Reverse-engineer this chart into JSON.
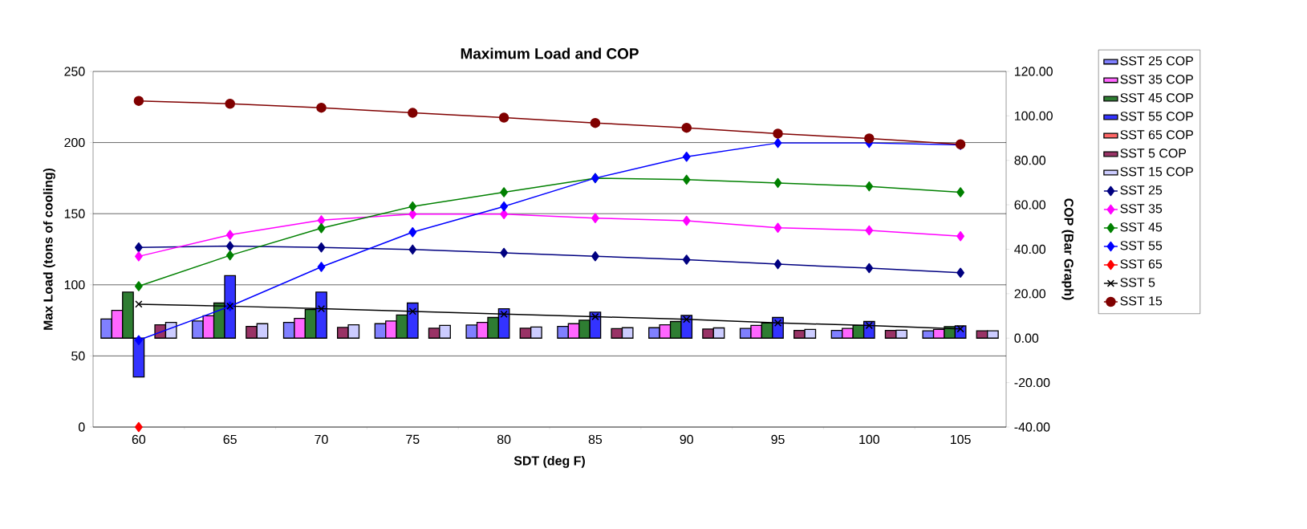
{
  "chart_data": {
    "type": "line",
    "title": "Maximum Load and COP",
    "xlabel": "SDT (deg F)",
    "ylabel": "Max Load (tons of cooling)",
    "y2label": "COP (Bar Graph)",
    "categories": [
      "60",
      "65",
      "70",
      "75",
      "80",
      "85",
      "90",
      "95",
      "100",
      "105"
    ],
    "ylim": [
      0,
      250
    ],
    "yticks": [
      0,
      50,
      100,
      150,
      200,
      250
    ],
    "y2lim": [
      -40,
      120
    ],
    "y2ticks": [
      {
        "value": -40,
        "label": "-40.00"
      },
      {
        "value": -20,
        "label": "-20.00"
      },
      {
        "value": 0,
        "label": "0.00"
      },
      {
        "value": 20,
        "label": "20.00"
      },
      {
        "value": 40,
        "label": "40.00"
      },
      {
        "value": 60,
        "label": "60.00"
      },
      {
        "value": 80,
        "label": "80.00"
      },
      {
        "value": 100,
        "label": "100.00"
      },
      {
        "value": 120,
        "label": "120.00"
      }
    ],
    "grid": "y",
    "legend": "right",
    "series": [
      {
        "name": "SST 25 COP",
        "type": "bar",
        "axis": "y2",
        "color": "#8080ff",
        "values": [
          8.6,
          7.7,
          7.1,
          6.5,
          5.9,
          5.3,
          4.7,
          4.4,
          3.5,
          3.3
        ]
      },
      {
        "name": "SST 35 COP",
        "type": "bar",
        "axis": "y2",
        "color": "#ff66ff",
        "values": [
          12.5,
          10.1,
          8.9,
          7.7,
          7.1,
          6.5,
          6.0,
          5.7,
          4.4,
          3.9
        ]
      },
      {
        "name": "SST 45 COP",
        "type": "bar",
        "axis": "y2",
        "color": "#2e7d32",
        "values": [
          20.7,
          15.8,
          12.9,
          10.4,
          9.3,
          8.1,
          7.5,
          6.8,
          5.7,
          5.2
        ]
      },
      {
        "name": "SST 55 COP",
        "type": "bar",
        "axis": "y2",
        "color": "#3333ff",
        "values": [
          -17.5,
          28.1,
          20.7,
          15.8,
          13.2,
          11.7,
          10.2,
          9.3,
          7.5,
          5.5
        ]
      },
      {
        "name": "SST 65 COP",
        "type": "bar",
        "axis": "y2",
        "color": "#ff6666",
        "values": [
          null,
          null,
          null,
          null,
          null,
          null,
          null,
          null,
          null,
          null
        ]
      },
      {
        "name": "SST 5 COP",
        "type": "bar",
        "axis": "y2",
        "color": "#993366",
        "values": [
          6.0,
          5.3,
          4.8,
          4.5,
          4.5,
          4.3,
          4.1,
          3.5,
          3.5,
          3.3
        ]
      },
      {
        "name": "SST 15 COP",
        "type": "bar",
        "axis": "y2",
        "color": "#ccccff",
        "values": [
          7.1,
          6.5,
          6.0,
          5.7,
          5.0,
          4.7,
          4.6,
          3.9,
          3.6,
          3.3
        ]
      },
      {
        "name": "SST 25",
        "color": "#000080",
        "marker": "diamond",
        "values": [
          126.3,
          127.2,
          126.3,
          124.8,
          122.5,
          120.1,
          117.7,
          114.5,
          111.7,
          108.5
        ]
      },
      {
        "name": "SST 35",
        "color": "#ff00ff",
        "marker": "diamond",
        "values": [
          120,
          135.1,
          145.4,
          149.7,
          149.7,
          146.9,
          145,
          140.1,
          138.3,
          134.2
        ]
      },
      {
        "name": "SST 45",
        "color": "#008000",
        "marker": "diamond",
        "values": [
          99,
          120.7,
          139.8,
          155.1,
          165.1,
          175,
          173.9,
          171.6,
          169.2,
          165.1
        ]
      },
      {
        "name": "SST 55",
        "color": "#0000ff",
        "marker": "diamond",
        "values": [
          61.1,
          84.9,
          112.6,
          137,
          155.1,
          175,
          190,
          199.7,
          199.7,
          198.3
        ]
      },
      {
        "name": "SST 65",
        "color": "#ff0000",
        "marker": "diamond",
        "values": [
          0,
          null,
          null,
          null,
          null,
          null,
          null,
          null,
          null,
          null
        ]
      },
      {
        "name": "SST 5",
        "color": "#000000",
        "marker": "cross",
        "values": [
          86.4,
          85,
          83.2,
          81.3,
          79.4,
          77.6,
          75.7,
          73.2,
          71.4,
          69
        ]
      },
      {
        "name": "SST 15",
        "color": "#800000",
        "marker": "circle",
        "values": [
          229.3,
          227.3,
          224.5,
          220.9,
          217.5,
          213.8,
          210.4,
          206.3,
          202.9,
          198.8
        ]
      }
    ]
  }
}
